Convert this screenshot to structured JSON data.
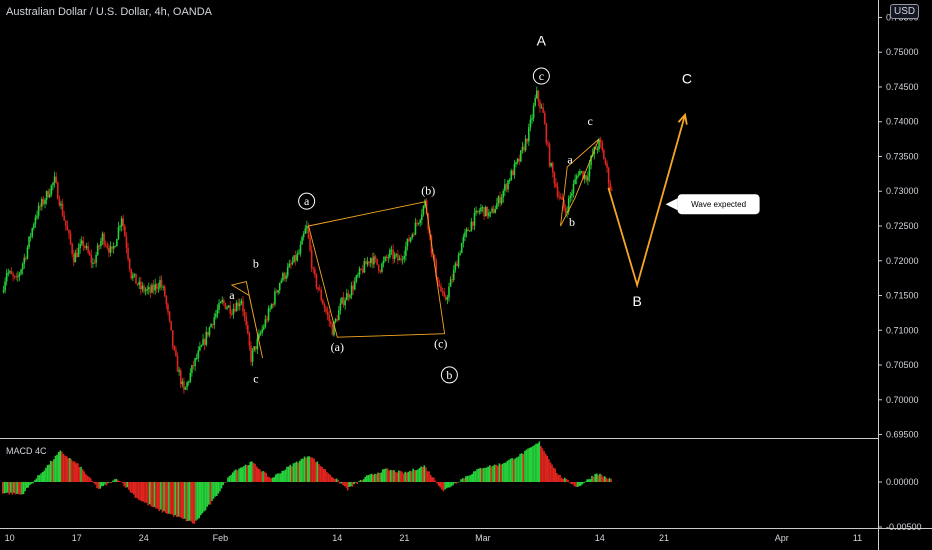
{
  "header": {
    "title": "Australian Dollar / U.S. Dollar, 4h, OANDA",
    "currency": "USD"
  },
  "macd": {
    "label": "MACD 4C"
  },
  "colors": {
    "up": "#26d13a",
    "down": "#e0241e",
    "annot_line": "#f5a623",
    "background": "#000000"
  },
  "chart_data": {
    "type": "candlestick",
    "symbol": "AUDUSD",
    "timeframe": "4h",
    "ylim": [
      0.6945,
      0.7555
    ],
    "y_ticks": [
      "0.69500",
      "0.70000",
      "0.70500",
      "0.71000",
      "0.71500",
      "0.72000",
      "0.72500",
      "0.73000",
      "0.73500",
      "0.74000",
      "0.74500",
      "0.75000",
      "0.75500"
    ],
    "x_ticks": [
      "10",
      "17",
      "24",
      "Feb",
      "14",
      "21",
      "Mar",
      "14",
      "21",
      "Apr",
      "11"
    ],
    "price_path": [
      {
        "d": 0,
        "p": 0.7155
      },
      {
        "d": 0.5,
        "p": 0.7185
      },
      {
        "d": 1.5,
        "p": 0.717
      },
      {
        "d": 2.5,
        "p": 0.721
      },
      {
        "d": 3.5,
        "p": 0.7265
      },
      {
        "d": 4.5,
        "p": 0.729
      },
      {
        "d": 5.5,
        "p": 0.7315
      },
      {
        "d": 6.5,
        "p": 0.726
      },
      {
        "d": 7.5,
        "p": 0.7205
      },
      {
        "d": 8.5,
        "p": 0.7225
      },
      {
        "d": 9.5,
        "p": 0.7195
      },
      {
        "d": 10.5,
        "p": 0.7235
      },
      {
        "d": 11.5,
        "p": 0.721
      },
      {
        "d": 12.5,
        "p": 0.7265
      },
      {
        "d": 13.5,
        "p": 0.718
      },
      {
        "d": 14.5,
        "p": 0.716
      },
      {
        "d": 15.5,
        "p": 0.7155
      },
      {
        "d": 16.5,
        "p": 0.717
      },
      {
        "d": 17,
        "p": 0.715
      },
      {
        "d": 18,
        "p": 0.7065
      },
      {
        "d": 19,
        "p": 0.701
      },
      {
        "d": 20,
        "p": 0.705
      },
      {
        "d": 21,
        "p": 0.708
      },
      {
        "d": 22,
        "p": 0.7115
      },
      {
        "d": 23,
        "p": 0.714
      },
      {
        "d": 24,
        "p": 0.713
      },
      {
        "d": 25,
        "p": 0.7145
      },
      {
        "d": 26,
        "p": 0.706
      },
      {
        "d": 27,
        "p": 0.7095
      },
      {
        "d": 28,
        "p": 0.713
      },
      {
        "d": 29,
        "p": 0.717
      },
      {
        "d": 30,
        "p": 0.719
      },
      {
        "d": 31,
        "p": 0.721
      },
      {
        "d": 31.8,
        "p": 0.725
      },
      {
        "d": 32.5,
        "p": 0.718
      },
      {
        "d": 33.5,
        "p": 0.714
      },
      {
        "d": 34.5,
        "p": 0.71
      },
      {
        "d": 35.5,
        "p": 0.714
      },
      {
        "d": 36.5,
        "p": 0.716
      },
      {
        "d": 37.5,
        "p": 0.7185
      },
      {
        "d": 38.5,
        "p": 0.7205
      },
      {
        "d": 39.5,
        "p": 0.719
      },
      {
        "d": 40.5,
        "p": 0.721
      },
      {
        "d": 41.5,
        "p": 0.72
      },
      {
        "d": 42.5,
        "p": 0.723
      },
      {
        "d": 43.5,
        "p": 0.726
      },
      {
        "d": 44.2,
        "p": 0.7285
      },
      {
        "d": 44.8,
        "p": 0.722
      },
      {
        "d": 45.5,
        "p": 0.717
      },
      {
        "d": 46.2,
        "p": 0.714
      },
      {
        "d": 47,
        "p": 0.7175
      },
      {
        "d": 48,
        "p": 0.7225
      },
      {
        "d": 49,
        "p": 0.7255
      },
      {
        "d": 50,
        "p": 0.7275
      },
      {
        "d": 51,
        "p": 0.7265
      },
      {
        "d": 52,
        "p": 0.729
      },
      {
        "d": 53,
        "p": 0.732
      },
      {
        "d": 54,
        "p": 0.7345
      },
      {
        "d": 55,
        "p": 0.7385
      },
      {
        "d": 55.8,
        "p": 0.744
      },
      {
        "d": 56.5,
        "p": 0.741
      },
      {
        "d": 57.2,
        "p": 0.734
      },
      {
        "d": 58,
        "p": 0.73
      },
      {
        "d": 58.8,
        "p": 0.727
      },
      {
        "d": 59.5,
        "p": 0.73
      },
      {
        "d": 60.2,
        "p": 0.733
      },
      {
        "d": 61,
        "p": 0.732
      },
      {
        "d": 61.7,
        "p": 0.7355
      },
      {
        "d": 62.4,
        "p": 0.737
      },
      {
        "d": 63,
        "p": 0.734
      },
      {
        "d": 63.6,
        "p": 0.73
      }
    ],
    "macd_path": [
      {
        "d": 0,
        "v": -0.0012
      },
      {
        "d": 2,
        "v": -0.0014
      },
      {
        "d": 4,
        "v": 0.001
      },
      {
        "d": 6,
        "v": 0.0034
      },
      {
        "d": 8,
        "v": 0.0018
      },
      {
        "d": 10,
        "v": -0.0008
      },
      {
        "d": 12,
        "v": 0.0004
      },
      {
        "d": 14,
        "v": -0.0018
      },
      {
        "d": 16,
        "v": -0.003
      },
      {
        "d": 18,
        "v": -0.0038
      },
      {
        "d": 20,
        "v": -0.0046
      },
      {
        "d": 22,
        "v": -0.002
      },
      {
        "d": 24,
        "v": 0.0012
      },
      {
        "d": 26,
        "v": 0.0022
      },
      {
        "d": 28,
        "v": 0.0004
      },
      {
        "d": 30,
        "v": 0.0018
      },
      {
        "d": 32,
        "v": 0.003
      },
      {
        "d": 34,
        "v": 0.001
      },
      {
        "d": 36,
        "v": -0.0008
      },
      {
        "d": 38,
        "v": 0.0006
      },
      {
        "d": 40,
        "v": 0.0014
      },
      {
        "d": 42,
        "v": 0.001
      },
      {
        "d": 44,
        "v": 0.0018
      },
      {
        "d": 46,
        "v": -0.001
      },
      {
        "d": 48,
        "v": 0.0004
      },
      {
        "d": 50,
        "v": 0.0016
      },
      {
        "d": 52,
        "v": 0.002
      },
      {
        "d": 54,
        "v": 0.003
      },
      {
        "d": 56,
        "v": 0.0044
      },
      {
        "d": 58,
        "v": 0.0008
      },
      {
        "d": 60,
        "v": -0.0006
      },
      {
        "d": 62,
        "v": 0.001
      },
      {
        "d": 63.6,
        "v": 0.0002
      }
    ],
    "wave_labels": [
      {
        "text": "a",
        "d": 24,
        "p": 0.7145,
        "circled": false
      },
      {
        "text": "b",
        "d": 26.5,
        "p": 0.719,
        "circled": false
      },
      {
        "text": "c",
        "d": 26.5,
        "p": 0.7025,
        "circled": false
      },
      {
        "text": "a",
        "d": 31.8,
        "p": 0.728,
        "circled": true
      },
      {
        "text": "(a)",
        "d": 35,
        "p": 0.707,
        "circled": false
      },
      {
        "text": "(b)",
        "d": 44.5,
        "p": 0.7295,
        "circled": false
      },
      {
        "text": "(c)",
        "d": 45.8,
        "p": 0.7075,
        "circled": false
      },
      {
        "text": "b",
        "d": 46.7,
        "p": 0.703,
        "circled": true
      },
      {
        "text": "c",
        "d": 56.3,
        "p": 0.746,
        "circled": true
      },
      {
        "text": "a",
        "d": 59.3,
        "p": 0.734,
        "circled": false
      },
      {
        "text": "c",
        "d": 61.4,
        "p": 0.7395,
        "circled": false
      },
      {
        "text": "b",
        "d": 59.5,
        "p": 0.725,
        "circled": false
      }
    ],
    "big_wave_labels": [
      {
        "text": "A",
        "d": 56.3,
        "p": 0.751
      },
      {
        "text": "B",
        "d": 66.3,
        "p": 0.7135
      },
      {
        "text": "C",
        "d": 71.5,
        "p": 0.7455
      }
    ],
    "annotation_lines": [
      [
        {
          "d": 24,
          "p": 0.7165
        },
        {
          "d": 25.5,
          "p": 0.717
        },
        {
          "d": 27.2,
          "p": 0.706
        },
        {
          "d": 25.8,
          "p": 0.715
        }
      ],
      [
        {
          "d": 32,
          "p": 0.725
        },
        {
          "d": 44.2,
          "p": 0.7285
        },
        {
          "d": 46.2,
          "p": 0.7095
        },
        {
          "d": 35,
          "p": 0.709
        }
      ],
      [
        {
          "d": 58.3,
          "p": 0.725
        },
        {
          "d": 59.8,
          "p": 0.729
        },
        {
          "d": 62.3,
          "p": 0.7375
        },
        {
          "d": 59,
          "p": 0.7335
        }
      ]
    ],
    "forecast_path": [
      {
        "d": 63.3,
        "p": 0.7305
      },
      {
        "d": 66.3,
        "p": 0.7165
      },
      {
        "d": 71.3,
        "p": 0.741
      }
    ],
    "callout": {
      "text": "Wave expected",
      "d": 70,
      "p": 0.729
    }
  }
}
